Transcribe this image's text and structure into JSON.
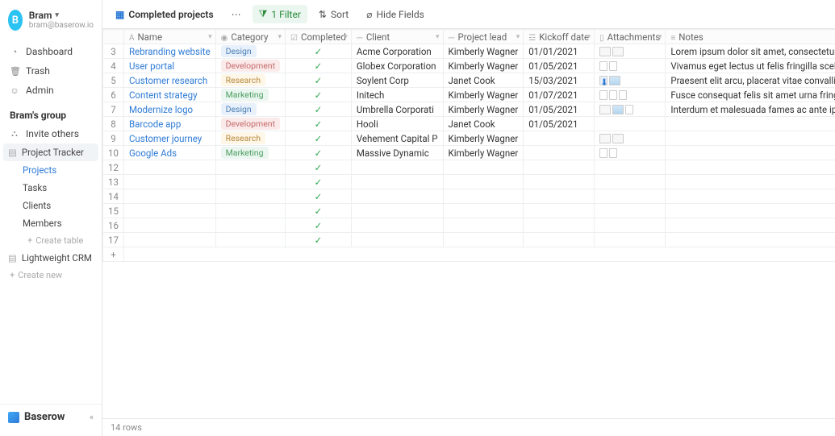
{
  "user": {
    "initial": "B",
    "name": "Bram",
    "email": "bram@baserow.io"
  },
  "nav": {
    "dashboard": "Dashboard",
    "trash": "Trash",
    "admin": "Admin"
  },
  "group": {
    "title": "Bram's group",
    "invite": "Invite others",
    "databases": [
      {
        "name": "Project Tracker",
        "active": true,
        "tables": [
          {
            "name": "Projects",
            "active": true
          },
          {
            "name": "Tasks"
          },
          {
            "name": "Clients"
          },
          {
            "name": "Members"
          }
        ]
      },
      {
        "name": "Lightweight CRM"
      }
    ],
    "create_table": "Create table",
    "create_new": "Create new"
  },
  "brand": "Baserow",
  "toolbar": {
    "view": "Completed projects",
    "filter": "1 Filter",
    "sort": "Sort",
    "hide": "Hide Fields"
  },
  "columns": {
    "name": "Name",
    "category": "Category",
    "completed": "Completed",
    "client": "Client",
    "lead": "Project lead",
    "date": "Kickoff date",
    "attachments": "Attachments",
    "notes": "Notes"
  },
  "badge_classes": {
    "Design": "badge-design",
    "Development": "badge-dev",
    "Research": "badge-research",
    "Marketing": "badge-marketing"
  },
  "rows": [
    {
      "n": 3,
      "name": "Rebranding website",
      "category": "Design",
      "client": "Acme Corporation",
      "lead": "Kimberly Wagner",
      "date": "01/01/2021",
      "att_type": "thumbs2",
      "notes": "Lorem ipsum dolor sit amet, consectetur adipisci..."
    },
    {
      "n": 4,
      "name": "User portal",
      "category": "Development",
      "client": "Globex Corporation",
      "lead": "Kimberly Wagner",
      "date": "01/05/2021",
      "att_type": "files2",
      "notes": "Vivamus eget lectus ut felis fringilla scelerisque. ..."
    },
    {
      "n": 5,
      "name": "Customer research",
      "category": "Research",
      "client": "Soylent Corp",
      "lead": "Janet Cook",
      "date": "15/03/2021",
      "att_type": "dl_img",
      "notes": "Praesent elit arcu, placerat vitae convallis at, co..."
    },
    {
      "n": 6,
      "name": "Content strategy",
      "category": "Marketing",
      "client": "Initech",
      "lead": "Kimberly Wagner",
      "date": "01/07/2021",
      "att_type": "files3",
      "notes": "Fusce consequat felis sit amet urna fringilla, moll..."
    },
    {
      "n": 7,
      "name": "Modernize logo",
      "category": "Design",
      "client": "Umbrella Corporati",
      "lead": "Kimberly Wagner",
      "date": "01/05/2021",
      "att_type": "mix3",
      "notes": "Interdum et malesuada fames ac ante ipsum pri..."
    },
    {
      "n": 8,
      "name": "Barcode app",
      "category": "Development",
      "client": "Hooli",
      "lead": "Janet Cook",
      "date": "01/05/2021",
      "att_type": "",
      "notes": ""
    },
    {
      "n": 9,
      "name": "Customer journey",
      "category": "Research",
      "client": "Vehement Capital P",
      "lead": "Kimberly Wagner",
      "date": "",
      "att_type": "thumbs2b",
      "notes": ""
    },
    {
      "n": 10,
      "name": "Google Ads",
      "category": "Marketing",
      "client": "Massive Dynamic",
      "lead": "Kimberly Wagner",
      "date": "",
      "att_type": "files2",
      "notes": ""
    }
  ],
  "empty_rows": [
    12,
    13,
    14,
    15,
    16,
    17
  ],
  "footer": {
    "rowcount": "14 rows"
  }
}
